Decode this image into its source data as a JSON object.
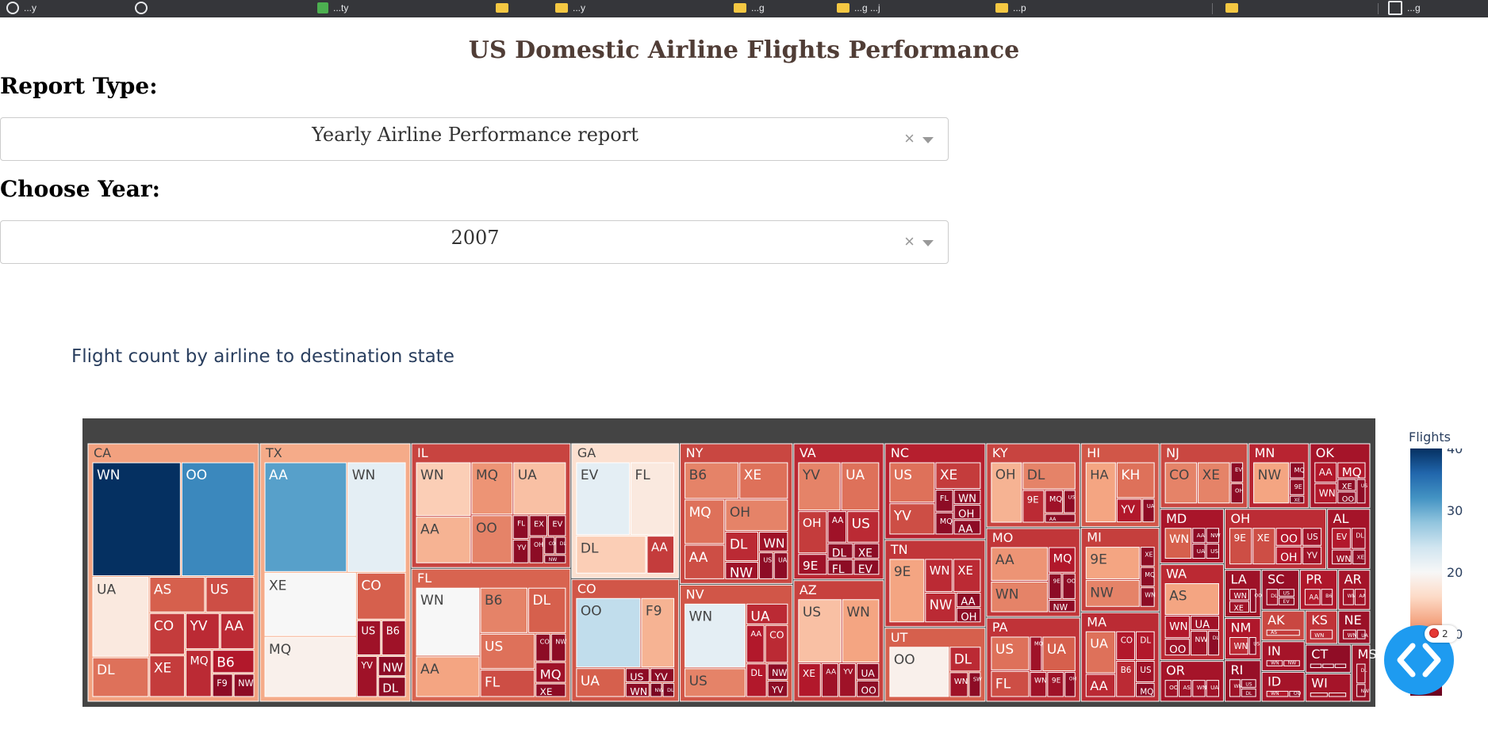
{
  "browser": {
    "bookmarks": [
      {
        "icon": "globe-icon",
        "label": "...y"
      },
      {
        "icon": "globe-icon",
        "label": ""
      },
      {
        "icon": "sheets-icon",
        "label": "...ty"
      },
      {
        "icon": "folder-icon",
        "label": ""
      },
      {
        "icon": "folder-icon",
        "label": "...y"
      },
      {
        "icon": "folder-icon",
        "label": "...g"
      },
      {
        "icon": "folder-icon",
        "label": "...g ...j"
      },
      {
        "icon": "folder-icon",
        "label": "...p"
      },
      {
        "icon": "folder-icon",
        "label": ""
      },
      {
        "icon": "reading-list-icon",
        "label": "...g"
      }
    ]
  },
  "page": {
    "title": "US Domestic Airline Flights Performance",
    "report_label": "Report Type:",
    "report_value": "Yearly Airline Performance report",
    "year_label": "Choose Year:",
    "year_value": "2007",
    "clear_glyph": "×"
  },
  "chart_data": {
    "type": "treemap",
    "title": "Flight count by airline to destination state",
    "colorbar": {
      "title": "Flights",
      "ticks": [
        10,
        20,
        30,
        40
      ],
      "colorscale": "RdBu",
      "range": [
        0,
        40
      ]
    },
    "states": [
      {
        "state": "CA",
        "value": 200,
        "items": [
          [
            "WN",
            40
          ],
          [
            "OO",
            33
          ],
          [
            "UA",
            18
          ],
          [
            "DL",
            9
          ],
          [
            "AS",
            8
          ],
          [
            "US",
            7
          ],
          [
            "CO",
            6
          ],
          [
            "XE",
            6
          ],
          [
            "YV",
            5
          ],
          [
            "AA",
            5
          ],
          [
            "MQ",
            5
          ],
          [
            "B6",
            4
          ],
          [
            "F9",
            2
          ],
          [
            "NW",
            2
          ]
        ]
      },
      {
        "state": "TX",
        "value": 176,
        "items": [
          [
            "AA",
            31
          ],
          [
            "WN",
            22
          ],
          [
            "XE",
            20
          ],
          [
            "MQ",
            19
          ],
          [
            "CO",
            8
          ],
          [
            "US",
            3
          ],
          [
            "B6",
            3
          ],
          [
            "YV",
            3
          ],
          [
            "NW",
            2
          ],
          [
            "DL",
            2
          ]
        ]
      },
      {
        "state": "IL",
        "value": 90,
        "items": [
          [
            "WN",
            15
          ],
          [
            "AA",
            13
          ],
          [
            "MQ",
            11
          ],
          [
            "UA",
            14
          ],
          [
            "OO",
            10
          ],
          [
            "FL",
            2
          ],
          [
            "YV",
            2
          ],
          [
            "EX",
            2
          ],
          [
            "EV",
            2
          ],
          [
            "OH",
            2
          ],
          [
            "CO",
            1
          ],
          [
            "DL",
            1
          ],
          [
            "NW",
            1
          ]
        ]
      },
      {
        "state": "FL",
        "value": 96,
        "items": [
          [
            "WN",
            20
          ],
          [
            "AA",
            12
          ],
          [
            "B6",
            10
          ],
          [
            "DL",
            8
          ],
          [
            "US",
            9
          ],
          [
            "FL",
            7
          ],
          [
            "CO",
            2
          ],
          [
            "NW",
            2
          ],
          [
            "MQ",
            3
          ],
          [
            "XE",
            2
          ]
        ]
      },
      {
        "state": "GA",
        "value": 66,
        "items": [
          [
            "EV",
            22
          ],
          [
            "FL",
            18
          ],
          [
            "DL",
            15
          ],
          [
            "AA",
            6
          ]
        ]
      },
      {
        "state": "CO",
        "value": 60,
        "items": [
          [
            "OO",
            25
          ],
          [
            "F9",
            13
          ],
          [
            "UA",
            8
          ],
          [
            "US",
            2
          ],
          [
            "WN",
            2
          ],
          [
            "YV",
            2
          ],
          [
            "NW",
            1
          ],
          [
            "DL",
            1
          ]
        ]
      },
      {
        "state": "NY",
        "value": 72,
        "items": [
          [
            "B6",
            10
          ],
          [
            "XE",
            9
          ],
          [
            "MQ",
            9
          ],
          [
            "AA",
            7
          ],
          [
            "OH",
            10
          ],
          [
            "DL",
            5
          ],
          [
            "NW",
            3
          ],
          [
            "WN",
            3
          ],
          [
            "US",
            2
          ],
          [
            "UA",
            2
          ]
        ]
      },
      {
        "state": "NV",
        "value": 60,
        "items": [
          [
            "WN",
            22
          ],
          [
            "US",
            10
          ],
          [
            "UA",
            5
          ],
          [
            "AA",
            4
          ],
          [
            "CO",
            5
          ],
          [
            "DL",
            4
          ],
          [
            "NW",
            2
          ],
          [
            "YV",
            2
          ]
        ]
      },
      {
        "state": "VA",
        "value": 56,
        "items": [
          [
            "YV",
            10
          ],
          [
            "UA",
            9
          ],
          [
            "OH",
            6
          ],
          [
            "9E",
            3
          ],
          [
            "AA",
            3
          ],
          [
            "US",
            5
          ],
          [
            "DL",
            2
          ],
          [
            "FL",
            2
          ],
          [
            "XE",
            2
          ],
          [
            "EV",
            2
          ]
        ]
      },
      {
        "state": "AZ",
        "value": 50,
        "items": [
          [
            "US",
            14
          ],
          [
            "WN",
            12
          ],
          [
            "XE",
            4
          ],
          [
            "AA",
            3
          ],
          [
            "YV",
            3
          ],
          [
            "UA",
            2
          ],
          [
            "OO",
            2
          ]
        ]
      },
      {
        "state": "NC",
        "value": 44,
        "items": [
          [
            "US",
            9
          ],
          [
            "YV",
            7
          ],
          [
            "XE",
            6
          ],
          [
            "FL",
            2
          ],
          [
            "MQ",
            2
          ],
          [
            "WN",
            2
          ],
          [
            "OH",
            2
          ],
          [
            "AA",
            2
          ]
        ]
      },
      {
        "state": "TN",
        "value": 40,
        "items": [
          [
            "9E",
            12
          ],
          [
            "WN",
            5
          ],
          [
            "XE",
            5
          ],
          [
            "NW",
            5
          ],
          [
            "AA",
            2
          ],
          [
            "OH",
            2
          ]
        ]
      },
      {
        "state": "UT",
        "value": 34,
        "items": [
          [
            "OO",
            19
          ],
          [
            "DL",
            5
          ],
          [
            "WN",
            3
          ],
          [
            "SW",
            2
          ]
        ]
      },
      {
        "state": "KY",
        "value": 36,
        "items": [
          [
            "OH",
            13
          ],
          [
            "DL",
            10
          ],
          [
            "9E",
            5
          ],
          [
            "MQ",
            3
          ],
          [
            "US",
            2
          ],
          [
            "AA",
            2
          ]
        ]
      },
      {
        "state": "MO",
        "value": 38,
        "items": [
          [
            "AA",
            11
          ],
          [
            "WN",
            10
          ],
          [
            "MQ",
            4
          ],
          [
            "9E",
            2
          ],
          [
            "OO",
            2
          ],
          [
            "NW",
            2
          ]
        ]
      },
      {
        "state": "PA",
        "value": 36,
        "items": [
          [
            "US",
            9
          ],
          [
            "FL",
            7
          ],
          [
            "MQ",
            3
          ],
          [
            "UA",
            8
          ],
          [
            "WN",
            3
          ],
          [
            "9E",
            3
          ],
          [
            "OH",
            2
          ]
        ]
      },
      {
        "state": "HI",
        "value": 30,
        "items": [
          [
            "HA",
            12
          ],
          [
            "KH",
            9
          ],
          [
            "YV",
            4
          ],
          [
            "UA",
            2
          ]
        ]
      },
      {
        "state": "MI",
        "value": 30,
        "items": [
          [
            "9E",
            12
          ],
          [
            "NW",
            10
          ],
          [
            "XE",
            2
          ],
          [
            "MQ",
            2
          ],
          [
            "WN",
            2
          ]
        ]
      },
      {
        "state": "MA",
        "value": 32,
        "items": [
          [
            "UA",
            9
          ],
          [
            "AA",
            5
          ],
          [
            "CO",
            4
          ],
          [
            "DL",
            4
          ],
          [
            "B6",
            5
          ],
          [
            "US",
            3
          ],
          [
            "MQ",
            2
          ]
        ]
      },
      {
        "state": "NJ",
        "value": 26,
        "items": [
          [
            "CO",
            10
          ],
          [
            "XE",
            10
          ],
          [
            "EV",
            2
          ],
          [
            "OH",
            2
          ]
        ]
      },
      {
        "state": "MN",
        "value": 18,
        "items": [
          [
            "NW",
            12
          ],
          [
            "MQ",
            2
          ],
          [
            "9E",
            2
          ],
          [
            "XE",
            1
          ]
        ]
      },
      {
        "state": "OK",
        "value": 18,
        "items": [
          [
            "AA",
            4
          ],
          [
            "WN",
            4
          ],
          [
            "MQ",
            4
          ],
          [
            "XE",
            2
          ],
          [
            "OO",
            2
          ],
          [
            "US",
            2
          ]
        ]
      },
      {
        "state": "MD",
        "value": 16,
        "items": [
          [
            "WN",
            8
          ],
          [
            "AA",
            2
          ],
          [
            "NW",
            2
          ],
          [
            "UA",
            2
          ],
          [
            "US",
            2
          ]
        ]
      },
      {
        "state": "WA",
        "value": 28,
        "items": [
          [
            "AS",
            12
          ],
          [
            "WN",
            4
          ],
          [
            "OO",
            3
          ],
          [
            "UA",
            3
          ],
          [
            "NW",
            3
          ],
          [
            "DL",
            2
          ]
        ]
      },
      {
        "state": "OR",
        "value": 12,
        "items": [
          [
            "OO",
            3
          ],
          [
            "AS",
            3
          ],
          [
            "WN",
            3
          ],
          [
            "UA",
            3
          ]
        ]
      },
      {
        "state": "OH",
        "value": 28,
        "items": [
          [
            "9E",
            7
          ],
          [
            "XE",
            7
          ],
          [
            "OO",
            4
          ],
          [
            "OH",
            4
          ],
          [
            "US",
            3
          ],
          [
            "YV",
            3
          ]
        ]
      },
      {
        "state": "AL",
        "value": 12,
        "items": [
          [
            "EV",
            4
          ],
          [
            "DL",
            3
          ],
          [
            "WN",
            3
          ],
          [
            "XE",
            2
          ]
        ]
      },
      {
        "state": "LA",
        "value": 8,
        "items": [
          [
            "WN",
            3
          ],
          [
            "XE",
            3
          ],
          [
            "OO",
            2
          ]
        ]
      },
      {
        "state": "NM",
        "value": 7,
        "items": [
          [
            "WN",
            5
          ],
          [
            "US",
            2
          ]
        ]
      },
      {
        "state": "RI",
        "value": 7,
        "items": [
          [
            "WN",
            3
          ],
          [
            "US",
            2
          ],
          [
            "DL",
            2
          ]
        ]
      },
      {
        "state": "SC",
        "value": 7,
        "items": [
          [
            "DL",
            3
          ],
          [
            "US",
            2
          ],
          [
            "EV",
            2
          ]
        ]
      },
      {
        "state": "PR",
        "value": 7,
        "items": [
          [
            "AA",
            4
          ],
          [
            "B6",
            3
          ]
        ]
      },
      {
        "state": "AR",
        "value": 6,
        "items": [
          [
            "WN",
            3
          ],
          [
            "AA",
            3
          ]
        ]
      },
      {
        "state": "AK",
        "value": 6,
        "items": [
          [
            "AS",
            6
          ]
        ]
      },
      {
        "state": "IN",
        "value": 6,
        "items": [
          [
            "WN",
            3
          ],
          [
            "NW",
            3
          ]
        ]
      },
      {
        "state": "ID",
        "value": 6,
        "items": [
          [
            "WN",
            4
          ],
          [
            "OO",
            2
          ]
        ]
      },
      {
        "state": "KS",
        "value": 5,
        "items": [
          [
            "WN",
            5
          ]
        ]
      },
      {
        "state": "NE",
        "value": 5,
        "items": [
          [
            "WN",
            3
          ],
          [
            "UA",
            2
          ]
        ]
      },
      {
        "state": "CT",
        "value": 6,
        "items": [
          [
            "US",
            2
          ],
          [
            "DL",
            2
          ],
          [
            "AA",
            2
          ]
        ]
      },
      {
        "state": "WI",
        "value": 6,
        "items": [
          [
            "NW",
            3
          ],
          [
            "MQ",
            3
          ]
        ]
      },
      {
        "state": "MS",
        "value": 5,
        "items": [
          [
            "DL",
            3
          ],
          [
            "NW",
            2
          ]
        ]
      }
    ]
  },
  "fab_badge": "2"
}
